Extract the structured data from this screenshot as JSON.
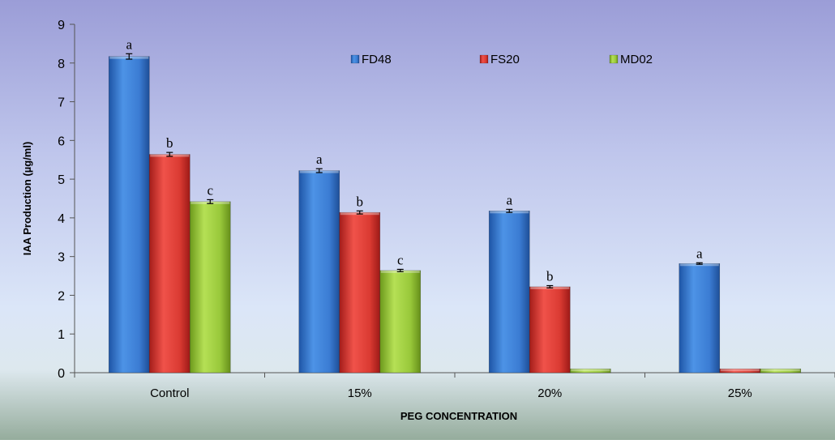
{
  "chart_data": {
    "type": "bar",
    "title": "",
    "xlabel": "PEG CONCENTRATION",
    "ylabel": "IAA Production  (µg/ml)",
    "ylim": [
      0,
      9
    ],
    "yticks": [
      0,
      1,
      2,
      3,
      4,
      5,
      6,
      7,
      8,
      9
    ],
    "categories": [
      "Control",
      "15%",
      "20%",
      "25%"
    ],
    "legend": {
      "position": "top-center",
      "orientation": "horizontal"
    },
    "grid": false,
    "series": [
      {
        "name": "FD48",
        "color": "#3a7fd5",
        "values": [
          8.17,
          5.22,
          4.18,
          2.82
        ],
        "errors": [
          0.07,
          0.05,
          0.04,
          0.02
        ],
        "labels": [
          "a",
          "a",
          "a",
          "a"
        ]
      },
      {
        "name": "FS20",
        "color": "#e03a32",
        "values": [
          5.64,
          4.14,
          2.22,
          0.1
        ],
        "errors": [
          0.05,
          0.04,
          0.03,
          0
        ],
        "labels": [
          "b",
          "b",
          "b",
          ""
        ]
      },
      {
        "name": "MD02",
        "color": "#9ccc3a",
        "values": [
          4.42,
          2.64,
          0.1,
          0.1
        ],
        "errors": [
          0.05,
          0.03,
          0,
          0
        ],
        "labels": [
          "c",
          "c",
          "",
          ""
        ]
      }
    ]
  }
}
